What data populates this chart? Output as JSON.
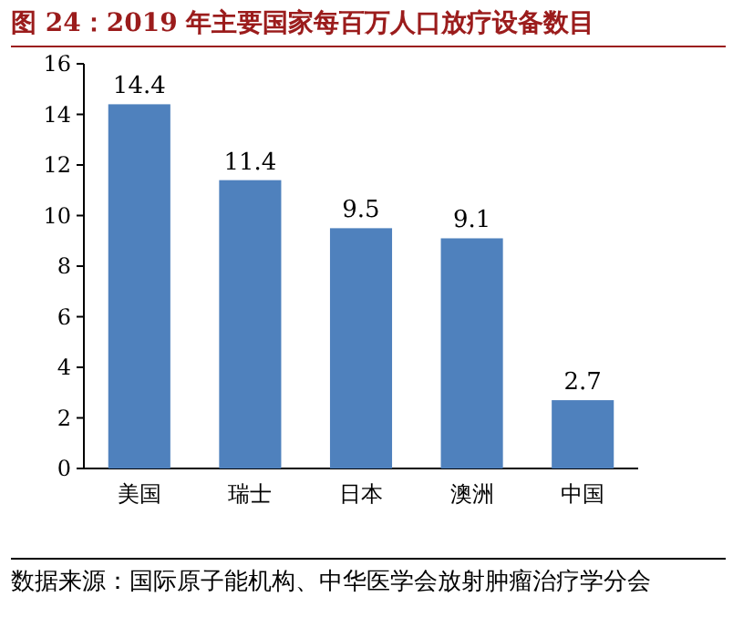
{
  "chart_data": {
    "type": "bar",
    "title": "图 24：2019 年主要国家每百万人口放疗设备数目",
    "categories": [
      "美国",
      "瑞士",
      "日本",
      "澳洲",
      "中国"
    ],
    "values": [
      14.4,
      11.4,
      9.5,
      9.1,
      2.7
    ],
    "color": "#4f81bd",
    "ylim": [
      0,
      16
    ],
    "yticks": [
      0,
      2,
      4,
      6,
      8,
      10,
      12,
      14,
      16
    ],
    "data_labels": true,
    "annotations": [
      "数据来源：国际原子能机构、中华医学会放射肿瘤治疗学分会"
    ]
  }
}
